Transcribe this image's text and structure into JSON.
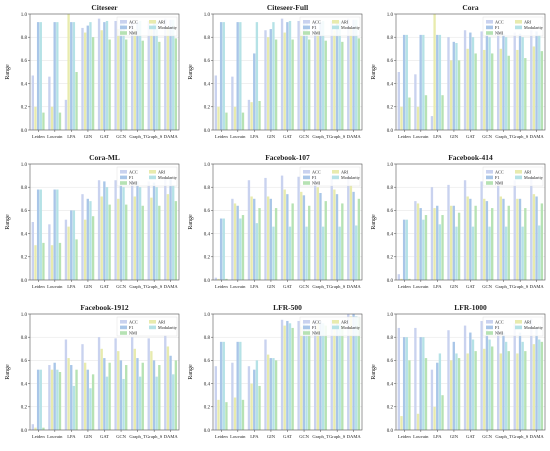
{
  "figure": {
    "ylabel": "Range",
    "legend": [
      "ACC",
      "ARI",
      "F1",
      "Modularity",
      "NMI"
    ],
    "colors": {
      "ACC": "#c9d2ef",
      "ARI": "#e8ebae",
      "F1": "#a9c6e8",
      "Modularity": "#b5e2e6",
      "NMI": "#b6e2b3"
    }
  },
  "chart_data": [
    {
      "type": "bar",
      "title": "Citeseer",
      "ylabel": "Range",
      "categories": [
        "Leiden",
        "Louvain",
        "LPA",
        "GIN",
        "GAT",
        "GCN",
        "Graph_T",
        "Graph_S",
        "DAMA"
      ],
      "ylim": [
        0,
        1.0
      ],
      "yticks": [
        "0.0",
        "0.2",
        "0.4",
        "0.6",
        "0.8",
        "1.0"
      ],
      "series": [
        {
          "name": "ACC",
          "values": [
            0.47,
            0.46,
            0.26,
            0.88,
            0.96,
            0.94,
            0.94,
            0.94,
            0.96
          ]
        },
        {
          "name": "ARI",
          "values": [
            0.2,
            0.2,
            1.0,
            0.84,
            0.86,
            0.87,
            0.87,
            0.87,
            0.88
          ]
        },
        {
          "name": "F1",
          "values": [
            0.93,
            0.93,
            0.93,
            0.9,
            0.93,
            0.92,
            0.93,
            0.93,
            0.95
          ]
        },
        {
          "name": "Modularity",
          "values": [
            0.93,
            0.93,
            0.93,
            0.93,
            0.94,
            0.93,
            0.94,
            0.94,
            0.95
          ]
        },
        {
          "name": "NMI",
          "values": [
            0.15,
            0.15,
            0.5,
            0.8,
            0.78,
            0.78,
            0.77,
            0.76,
            0.79
          ]
        }
      ]
    },
    {
      "type": "bar",
      "title": "Citeseer-Full",
      "ylabel": "Range",
      "categories": [
        "Leiden",
        "Louvain",
        "LPA",
        "GIN",
        "GAT",
        "GCN",
        "Graph_T",
        "Graph_S",
        "DAMA"
      ],
      "ylim": [
        0,
        1.0
      ],
      "yticks": [
        "0.0",
        "0.2",
        "0.4",
        "0.6",
        "0.8",
        "1.0"
      ],
      "series": [
        {
          "name": "ACC",
          "values": [
            0.47,
            0.46,
            0.26,
            0.86,
            0.96,
            0.94,
            0.94,
            0.94,
            0.96
          ]
        },
        {
          "name": "ARI",
          "values": [
            0.2,
            0.2,
            0.24,
            0.8,
            0.84,
            0.85,
            0.86,
            0.86,
            0.88
          ]
        },
        {
          "name": "F1",
          "values": [
            0.93,
            0.93,
            0.66,
            0.87,
            0.93,
            0.92,
            0.93,
            0.93,
            0.95
          ]
        },
        {
          "name": "Modularity",
          "values": [
            0.93,
            0.93,
            0.93,
            0.93,
            0.94,
            0.93,
            0.94,
            0.94,
            0.95
          ]
        },
        {
          "name": "NMI",
          "values": [
            0.15,
            0.15,
            0.25,
            0.78,
            0.78,
            0.78,
            0.77,
            0.76,
            0.79
          ]
        }
      ]
    },
    {
      "type": "bar",
      "title": "Cora",
      "ylabel": "Range",
      "categories": [
        "Leiden",
        "Louvain",
        "LPA",
        "GIN",
        "GAT",
        "GCN",
        "Graph_T",
        "Graph_S",
        "DAMA"
      ],
      "ylim": [
        0,
        1.0
      ],
      "yticks": [
        "0.0",
        "0.2",
        "0.4",
        "0.6",
        "0.8",
        "1.0"
      ],
      "series": [
        {
          "name": "ACC",
          "values": [
            0.5,
            0.48,
            0.12,
            0.8,
            0.86,
            0.85,
            0.85,
            0.84,
            0.86
          ]
        },
        {
          "name": "ARI",
          "values": [
            0.2,
            0.2,
            1.0,
            0.6,
            0.7,
            0.69,
            0.7,
            0.69,
            0.72
          ]
        },
        {
          "name": "F1",
          "values": [
            0.82,
            0.82,
            0.82,
            0.76,
            0.84,
            0.82,
            0.83,
            0.83,
            0.85
          ]
        },
        {
          "name": "Modularity",
          "values": [
            0.82,
            0.82,
            0.82,
            0.75,
            0.8,
            0.8,
            0.8,
            0.8,
            0.82
          ]
        },
        {
          "name": "NMI",
          "values": [
            0.28,
            0.3,
            0.3,
            0.6,
            0.66,
            0.66,
            0.64,
            0.62,
            0.68
          ]
        }
      ]
    },
    {
      "type": "bar",
      "title": "Cora-ML",
      "ylabel": "Range",
      "categories": [
        "Leiden",
        "Louvain",
        "LPA",
        "GIN",
        "GAT",
        "GCN",
        "Graph_T",
        "Graph_S",
        "DAMA"
      ],
      "ylim": [
        0,
        1.0
      ],
      "yticks": [
        "0.0",
        "0.2",
        "0.4",
        "0.6",
        "0.8",
        "1.0"
      ],
      "series": [
        {
          "name": "ACC",
          "values": [
            0.5,
            0.48,
            0.52,
            0.74,
            0.86,
            0.86,
            0.86,
            0.85,
            0.88
          ]
        },
        {
          "name": "ARI",
          "values": [
            0.3,
            0.3,
            0.46,
            0.52,
            0.72,
            0.7,
            0.72,
            0.71,
            0.74
          ]
        },
        {
          "name": "F1",
          "values": [
            0.78,
            0.78,
            0.6,
            0.7,
            0.85,
            0.84,
            0.85,
            0.84,
            0.87
          ]
        },
        {
          "name": "Modularity",
          "values": [
            0.78,
            0.78,
            0.6,
            0.68,
            0.8,
            0.8,
            0.8,
            0.8,
            0.82
          ]
        },
        {
          "name": "NMI",
          "values": [
            0.32,
            0.32,
            0.35,
            0.55,
            0.65,
            0.65,
            0.64,
            0.64,
            0.68
          ]
        }
      ]
    },
    {
      "type": "bar",
      "title": "Facebook-107",
      "ylabel": "Range",
      "categories": [
        "Leiden",
        "Louvain",
        "LPA",
        "GIN",
        "GAT",
        "GCN",
        "Graph_T",
        "Graph_S",
        "DAMA"
      ],
      "ylim": [
        0,
        1.0
      ],
      "yticks": [
        "0.0",
        "0.2",
        "0.4",
        "0.6",
        "0.8",
        "1.0"
      ],
      "series": [
        {
          "name": "ACC",
          "values": [
            0.02,
            0.7,
            0.86,
            0.88,
            0.9,
            0.89,
            0.9,
            0.9,
            0.92
          ]
        },
        {
          "name": "ARI",
          "values": [
            0.01,
            0.66,
            0.72,
            0.72,
            0.78,
            0.76,
            0.8,
            0.78,
            0.82
          ]
        },
        {
          "name": "F1",
          "values": [
            0.53,
            0.64,
            0.7,
            0.7,
            0.74,
            0.73,
            0.75,
            0.74,
            0.76
          ]
        },
        {
          "name": "Modularity",
          "values": [
            0.53,
            0.53,
            0.49,
            0.46,
            0.46,
            0.46,
            0.46,
            0.46,
            0.47
          ]
        },
        {
          "name": "NMI",
          "values": [
            0.01,
            0.56,
            0.62,
            0.62,
            0.66,
            0.64,
            0.68,
            0.66,
            0.7
          ]
        }
      ]
    },
    {
      "type": "bar",
      "title": "Facebook-414",
      "ylabel": "Range",
      "categories": [
        "Leiden",
        "Louvain",
        "LPA",
        "GIN",
        "GAT",
        "GCN",
        "Graph_T",
        "Graph_S",
        "DAMA"
      ],
      "ylim": [
        0,
        1.0
      ],
      "yticks": [
        "0.0",
        "0.2",
        "0.4",
        "0.6",
        "0.8",
        "1.0"
      ],
      "series": [
        {
          "name": "ACC",
          "values": [
            0.05,
            0.68,
            0.8,
            0.82,
            0.86,
            0.85,
            0.86,
            0.86,
            0.88
          ]
        },
        {
          "name": "ARI",
          "values": [
            0.01,
            0.66,
            0.62,
            0.64,
            0.72,
            0.7,
            0.72,
            0.7,
            0.74
          ]
        },
        {
          "name": "F1",
          "values": [
            0.52,
            0.62,
            0.64,
            0.64,
            0.7,
            0.68,
            0.7,
            0.7,
            0.72
          ]
        },
        {
          "name": "Modularity",
          "values": [
            0.52,
            0.52,
            0.48,
            0.46,
            0.46,
            0.46,
            0.46,
            0.46,
            0.47
          ]
        },
        {
          "name": "NMI",
          "values": [
            0.01,
            0.56,
            0.56,
            0.58,
            0.64,
            0.62,
            0.64,
            0.62,
            0.66
          ]
        }
      ]
    },
    {
      "type": "bar",
      "title": "Facebook-1912",
      "ylabel": "Range",
      "categories": [
        "Leiden",
        "Louvain",
        "LPA",
        "GIN",
        "GAT",
        "GCN",
        "Graph_T",
        "Graph_S",
        "DAMA"
      ],
      "ylim": [
        0,
        1.0
      ],
      "yticks": [
        "0.0",
        "0.2",
        "0.4",
        "0.6",
        "0.8",
        "1.0"
      ],
      "series": [
        {
          "name": "ACC",
          "values": [
            0.05,
            0.56,
            0.78,
            0.74,
            0.8,
            0.79,
            0.8,
            0.79,
            0.82
          ]
        },
        {
          "name": "ARI",
          "values": [
            0.02,
            0.52,
            0.62,
            0.58,
            0.7,
            0.68,
            0.7,
            0.68,
            0.72
          ]
        },
        {
          "name": "F1",
          "values": [
            0.52,
            0.58,
            0.56,
            0.52,
            0.62,
            0.6,
            0.62,
            0.6,
            0.64
          ]
        },
        {
          "name": "Modularity",
          "values": [
            0.52,
            0.52,
            0.38,
            0.36,
            0.46,
            0.44,
            0.46,
            0.46,
            0.48
          ]
        },
        {
          "name": "NMI",
          "values": [
            0.02,
            0.5,
            0.52,
            0.48,
            0.58,
            0.56,
            0.58,
            0.56,
            0.6
          ]
        }
      ]
    },
    {
      "type": "bar",
      "title": "LFR-500",
      "ylabel": "Range",
      "categories": [
        "Leiden",
        "Louvain",
        "LPA",
        "GIN",
        "GAT",
        "GCN",
        "Graph_T",
        "Graph_S",
        "DAMA"
      ],
      "ylim": [
        0,
        1.0
      ],
      "yticks": [
        "0.0",
        "0.2",
        "0.4",
        "0.6",
        "0.8",
        "1.0"
      ],
      "series": [
        {
          "name": "ACC",
          "values": [
            0.55,
            0.58,
            0.55,
            0.78,
            0.95,
            0.94,
            0.95,
            0.95,
            1.0
          ]
        },
        {
          "name": "ARI",
          "values": [
            0.26,
            0.28,
            0.4,
            0.65,
            0.9,
            0.89,
            0.92,
            0.92,
            0.98
          ]
        },
        {
          "name": "F1",
          "values": [
            0.76,
            0.76,
            0.52,
            0.62,
            0.94,
            0.93,
            0.94,
            0.94,
            1.0
          ]
        },
        {
          "name": "Modularity",
          "values": [
            0.76,
            0.76,
            0.6,
            0.62,
            0.92,
            0.91,
            0.92,
            0.92,
            0.98
          ]
        },
        {
          "name": "NMI",
          "values": [
            0.24,
            0.26,
            0.38,
            0.6,
            0.88,
            0.87,
            0.9,
            0.9,
            0.97
          ]
        }
      ]
    },
    {
      "type": "bar",
      "title": "LFR-1000",
      "ylabel": "Range",
      "categories": [
        "Leiden",
        "Louvain",
        "LPA",
        "GIN",
        "GAT",
        "GCN",
        "Graph_T",
        "Graph_S",
        "DAMA"
      ],
      "ylim": [
        0,
        1.0
      ],
      "yticks": [
        "0.0",
        "0.2",
        "0.4",
        "0.6",
        "0.8",
        "1.0"
      ],
      "series": [
        {
          "name": "ACC",
          "values": [
            0.88,
            0.88,
            0.52,
            0.86,
            0.9,
            0.94,
            0.92,
            0.92,
            0.96
          ]
        },
        {
          "name": "ARI",
          "values": [
            0.12,
            0.14,
            0.2,
            0.6,
            0.66,
            0.7,
            0.66,
            0.66,
            0.74
          ]
        },
        {
          "name": "F1",
          "values": [
            0.8,
            0.8,
            0.58,
            0.76,
            0.84,
            0.86,
            0.84,
            0.84,
            0.88
          ]
        },
        {
          "name": "Modularity",
          "values": [
            0.8,
            0.8,
            0.66,
            0.66,
            0.78,
            0.78,
            0.76,
            0.76,
            0.78
          ]
        },
        {
          "name": "NMI",
          "values": [
            0.6,
            0.62,
            0.3,
            0.62,
            0.68,
            0.72,
            0.68,
            0.68,
            0.76
          ]
        }
      ]
    }
  ]
}
